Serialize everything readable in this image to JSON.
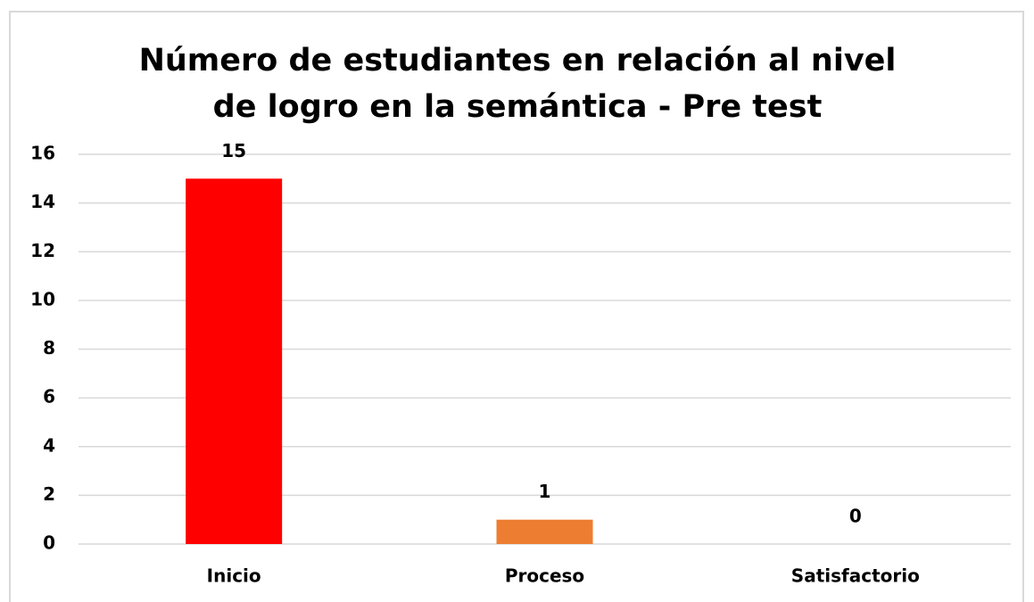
{
  "chart_data": {
    "type": "bar",
    "title": "Número de estudiantes en relación al nivel de logro en la semántica - Pre test",
    "categories": [
      "Inicio",
      "Proceso",
      "Satisfactorio"
    ],
    "values": [
      15,
      1,
      0
    ],
    "colors": [
      "#ff0000",
      "#ed7d31",
      "#70ad47"
    ],
    "ylim": [
      0,
      16
    ],
    "yticks": [
      0,
      2,
      4,
      6,
      8,
      10,
      12,
      14,
      16
    ],
    "grid": true
  }
}
